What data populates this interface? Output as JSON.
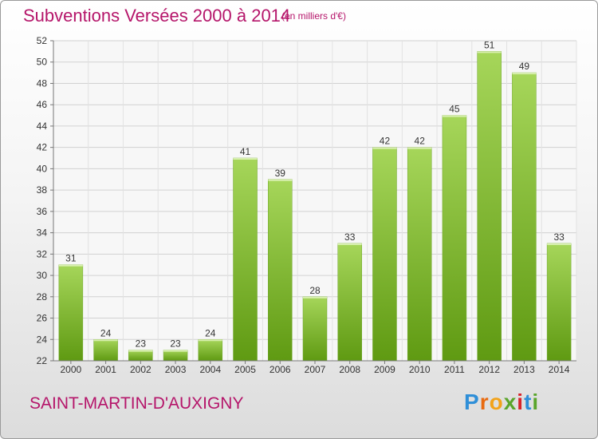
{
  "header": {
    "title": "Subventions Versées 2000 à 2014",
    "unit": "(en milliers d'€)"
  },
  "footer": {
    "commune": "SAINT-MARTIN-D'AUXIGNY",
    "brand_letters": [
      "P",
      "r",
      "o",
      "x",
      "i",
      "t",
      "i"
    ]
  },
  "colors": {
    "title": "#b5156a",
    "bar_light": "#a6d65a",
    "bar_dark": "#5f9a12",
    "brand": [
      "#2f8fd8",
      "#e86a10",
      "#f2a31b",
      "#5aa52c",
      "#d8232a",
      "#2f8fd8",
      "#5aa52c"
    ]
  },
  "chart_data": {
    "type": "bar",
    "title": "Subventions Versées 2000 à 2014",
    "subtitle": "(en milliers d'€)",
    "categories": [
      "2000",
      "2001",
      "2002",
      "2003",
      "2004",
      "2005",
      "2006",
      "2007",
      "2008",
      "2009",
      "2010",
      "2011",
      "2012",
      "2013",
      "2014"
    ],
    "values": [
      31,
      24,
      23,
      23,
      24,
      41,
      39,
      28,
      33,
      42,
      42,
      45,
      51,
      49,
      33
    ],
    "ylim": [
      22,
      52
    ],
    "yticks": [
      22,
      24,
      26,
      28,
      30,
      32,
      34,
      36,
      38,
      40,
      42,
      44,
      46,
      48,
      50,
      52
    ],
    "grid": true,
    "data_labels": true
  }
}
